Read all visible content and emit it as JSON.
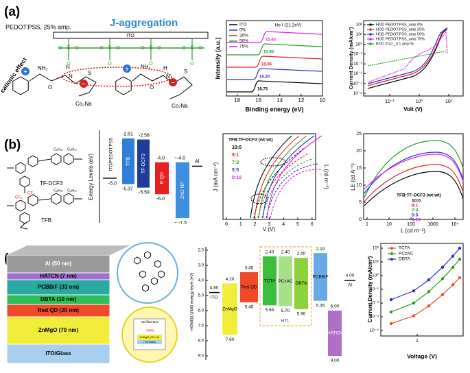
{
  "panel_a": {
    "label": "(a)",
    "note": "PEDOT:PSS, 25% amp.",
    "title": "J-aggregation",
    "ito": "ITO",
    "cationic": "cationic effect",
    "chem": {
      "nh2": "NH₂",
      "h": "H",
      "n": "N",
      "s": "S",
      "o": "O",
      "co2na": "Co₂Na",
      "plus": "+",
      "minus": "−"
    },
    "ups": {
      "legend": [
        "ITO",
        "0%",
        "20%",
        "50%",
        "75%"
      ],
      "source": "He I (21.2eV)",
      "peaks": [
        "15.63",
        "15.90",
        "15.95",
        "16.20",
        "16.73"
      ],
      "ylabel": "Intensity (a.u.)",
      "xlabel": "Binding energy (eV)",
      "xticks": [
        "18",
        "16",
        "14",
        "12",
        "10"
      ]
    },
    "jv": {
      "legend": [
        "HOD PEDOT:PSS_amp 0%",
        "HOD PEDOT:PSS_amp 25%",
        "HOD PEDOT:PSS_amp 50%",
        "HOD PEDOT:PSS_amp 75%",
        "EOD ZnO _0.1 amp %"
      ],
      "ylabel": "Current Density (mA/cm²)",
      "xlabel": "Volt (V)",
      "xticks": [
        "10⁻¹",
        "10⁰",
        "10¹"
      ],
      "yticks": [
        "10²",
        "10¹",
        "10⁰",
        "10⁻¹",
        "10⁻²",
        "10⁻³",
        "10⁻⁴",
        "10⁻⁵"
      ]
    }
  },
  "panel_b": {
    "label": "(b)",
    "mol1": "TF-DCF3",
    "mol2": "TFB",
    "cf3": "CF₃",
    "alkyl": "C₈H₁₇",
    "levels": {
      "ylabel": "Energy Levels (eV)",
      "ito": "ITO/PEDOT:PSS",
      "ito_val": "-5.0",
      "tfb": "TFB",
      "tfb_lumo": "-2.51",
      "tfb_homo": "-5.37",
      "dcf": "TF-DCF3",
      "dcf_lumo": "-2.58",
      "dcf_homo": "-5.59",
      "qd": "R QD",
      "qd_lumo": "-4.0",
      "qd_homo": "-6.0",
      "zno": "ZnO NP",
      "zno_lumo": "~-4.0",
      "zno_homo": "~ -7.5",
      "al": "Al"
    },
    "jvl": {
      "legend_title": "TFB:TF-DCF3 (wt:wt)",
      "ratios": [
        "10:0",
        "9:1",
        "7:3",
        "5:5",
        "0:10"
      ],
      "ylabel": "J (mA cm⁻²)",
      "xlabel": "V (V)",
      "y2label": "L (cd m⁻²)",
      "xticks": [
        "0",
        "1",
        "2",
        "3",
        "4",
        "5",
        "6"
      ]
    },
    "le": {
      "ylabel": "LE (cd A⁻¹)",
      "xlabel": "L (cd m⁻²)",
      "yticks": [
        "0",
        "5",
        "10",
        "15",
        "20",
        "25"
      ],
      "xticks": [
        "1",
        "10",
        "100",
        "1000",
        "10⁴"
      ],
      "legend_title": "TFB:TF-DCF3 (wt:wt)",
      "ratios": [
        "10:0",
        "9:1",
        "7:3",
        "5:5",
        "0:10"
      ]
    }
  },
  "panel_c": {
    "label": "(c)",
    "layers": [
      "Al (50 nm)",
      "HATCN (7 nm)",
      "PCBBiF (33 nm)",
      "DBTA (10 nm)",
      "Red QD (20 nm)",
      "ZnMgO (70 nm)",
      "ITO/Glass"
    ],
    "inset": {
      "box": "N2 filled Box",
      "aging": "Aging",
      "zn": "ZnMgO (70 nm)",
      "ito": "ITO/Glass"
    },
    "levels": {
      "ylabel": "HOMO/LUMO energy level (eV)",
      "yticks": [
        "2.0",
        "3.0",
        "4.0",
        "5.0",
        "6.0",
        "7.0",
        "8.0",
        "9.0"
      ],
      "ito": "ITO",
      "ito_v": "4.80",
      "znmgo": "ZnMgO",
      "znmgo_l": "4.20",
      "znmgo_h": "7.60",
      "qd": "Red QD",
      "qd_l": "3.45",
      "qd_h": "5.45",
      "tcta": "TCTA",
      "tcta_l": "2.40",
      "tcta_h": "5.65",
      "pczac": "PCzAC",
      "pczac_l": "2.40",
      "pczac_h": "5.70",
      "dbta": "DBTA",
      "dbta_l": "2.50",
      "dbta_h": "5.90",
      "htl": "HTL",
      "pcbbif": "PCBBiF",
      "pcbbif_l": "2.19",
      "pcbbif_h": "5.35",
      "hatcn": "HATCN",
      "hatcn_l": "6.00",
      "hatcn_h": "9.00",
      "al": "Al",
      "al_v": "4.00"
    },
    "jv": {
      "legend": [
        "TCTA",
        "PCzAC",
        "DBTA"
      ],
      "ylabel": "Current Density (mA/cm²)",
      "xlabel": "Voltage (V)",
      "xtick": "1",
      "yticks": [
        "10²",
        "10¹",
        "10⁰",
        "10⁻¹",
        "10⁻²",
        "10⁻³",
        "10⁻⁴"
      ]
    }
  }
}
